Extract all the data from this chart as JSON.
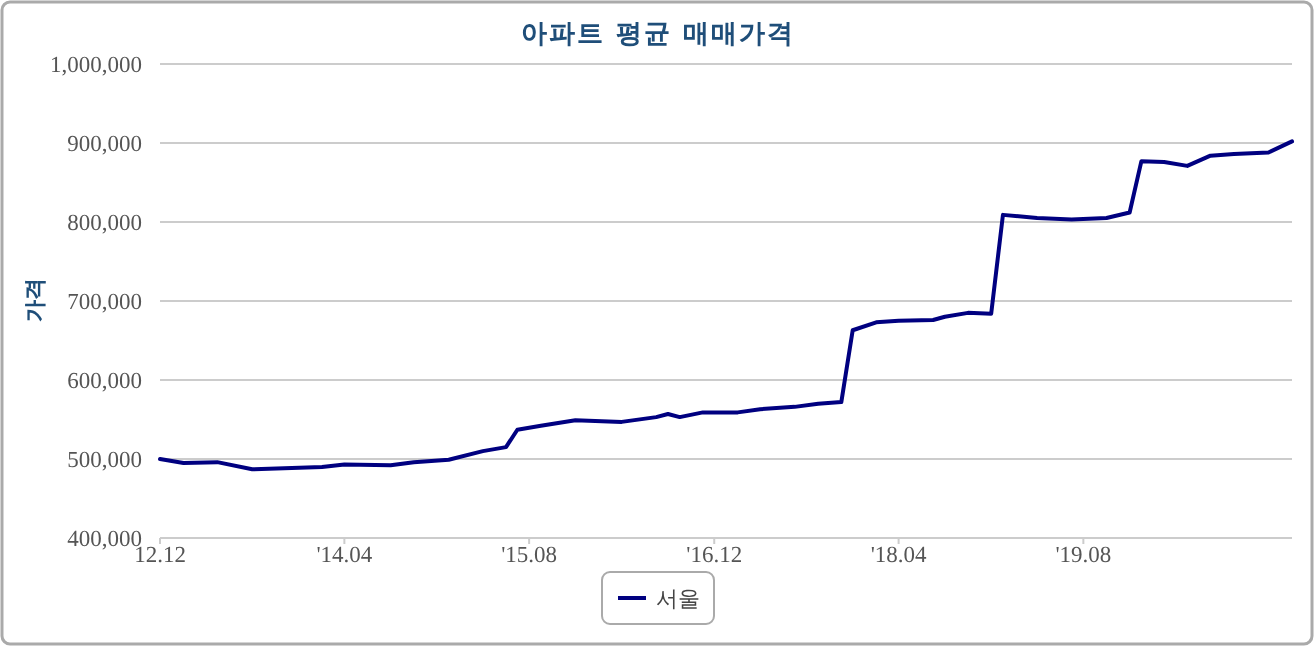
{
  "chart_data": {
    "type": "line",
    "title": "아파트 평균 매매가격",
    "ylabel": "가격",
    "x": [
      "2012-12",
      "2013-02",
      "2013-05",
      "2013-08",
      "2014-02",
      "2014-04",
      "2014-08",
      "2014-10",
      "2015-01",
      "2015-04",
      "2015-06",
      "2015-07",
      "2015-09",
      "2015-12",
      "2016-04",
      "2016-07",
      "2016-08",
      "2016-09",
      "2016-11",
      "2017-02",
      "2017-04",
      "2017-07",
      "2017-09",
      "2017-11",
      "2017-12",
      "2018-02",
      "2018-04",
      "2018-07",
      "2018-08",
      "2018-10",
      "2018-12",
      "2019-01",
      "2019-04",
      "2019-07",
      "2019-10",
      "2019-12",
      "2020-01",
      "2020-03",
      "2020-05",
      "2020-07",
      "2020-09",
      "2020-12",
      "2021-02"
    ],
    "series": [
      {
        "name": "서울",
        "color": "#000080",
        "values": [
          500000,
          495000,
          496000,
          487000,
          490000,
          493000,
          492000,
          496000,
          499000,
          510000,
          515000,
          537000,
          542000,
          549000,
          547000,
          553000,
          557000,
          553000,
          559000,
          559000,
          563000,
          566000,
          570000,
          572000,
          663000,
          673000,
          675000,
          676000,
          680000,
          685000,
          684000,
          809000,
          805000,
          803000,
          805000,
          812000,
          877000,
          876000,
          871000,
          884000,
          886000,
          888000,
          902000
        ]
      }
    ],
    "xlim": [
      "2012-12",
      "2021-02"
    ],
    "xticks": [
      {
        "value": "2012-12",
        "label": "12.12"
      },
      {
        "value": "2014-04",
        "label": "'14.04"
      },
      {
        "value": "2015-08",
        "label": "'15.08"
      },
      {
        "value": "2016-12",
        "label": "'16.12"
      },
      {
        "value": "2018-04",
        "label": "'18.04"
      },
      {
        "value": "2019-08",
        "label": "'19.08"
      }
    ],
    "ylim": [
      400000,
      1000000
    ],
    "yticks": [
      {
        "value": 400000,
        "label": "400,000"
      },
      {
        "value": 500000,
        "label": "500,000"
      },
      {
        "value": 600000,
        "label": "600,000"
      },
      {
        "value": 700000,
        "label": "700,000"
      },
      {
        "value": 800000,
        "label": "800,000"
      },
      {
        "value": 900000,
        "label": "900,000"
      },
      {
        "value": 1000000,
        "label": "1,000,000"
      }
    ],
    "grid": "y",
    "legend": "bottom",
    "marker": "none",
    "line_style": "solid"
  }
}
